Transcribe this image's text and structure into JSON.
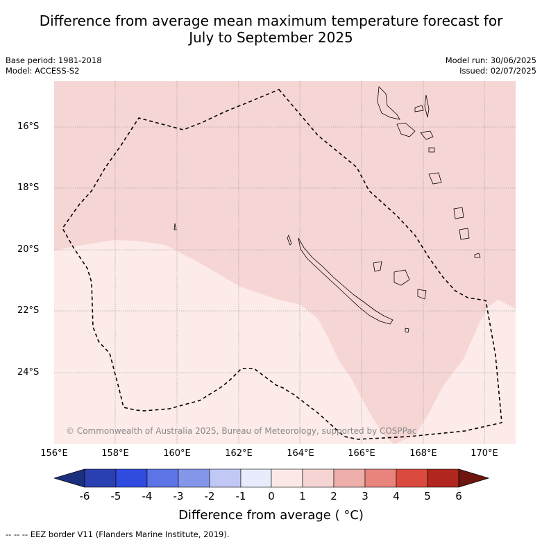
{
  "title_line1": "Difference from average mean maximum temperature forecast for",
  "title_line2": "July to September 2025",
  "base_period": "Base period: 1981-2018",
  "model": "Model: ACCESS-S2",
  "model_run": "Model run: 30/06/2025",
  "issued": "Issued: 02/07/2025",
  "copyright": "© Commonwealth of Australia 2025, Bureau of Meteorology, supported by COSPPac",
  "lat_labels": [
    "16°S",
    "18°S",
    "20°S",
    "22°S",
    "24°S"
  ],
  "lon_labels": [
    "156°E",
    "158°E",
    "160°E",
    "162°E",
    "164°E",
    "166°E",
    "168°E",
    "170°E"
  ],
  "colorbar": {
    "ticks": [
      "-6",
      "-5",
      "-4",
      "-3",
      "-2",
      "-1",
      "0",
      "1",
      "2",
      "3",
      "4",
      "5",
      "6"
    ],
    "colors": [
      "#1c2e7e",
      "#2a40b2",
      "#2f4be0",
      "#5c74e6",
      "#8396ea",
      "#c1c8f5",
      "#e8ebfb",
      "#fce9e7",
      "#f5d5d3",
      "#eeaeaa",
      "#e8837d",
      "#db4a3e",
      "#b1261e",
      "#6e1510"
    ],
    "title": "Difference from average ( °C)"
  },
  "legend_text": "-- -- -- EEZ border V11 (Flanders Marine Institute, 2019).",
  "map_colors": {
    "zone_0_1": "#fcebe9",
    "zone_1_2": "#f6d6d4"
  }
}
